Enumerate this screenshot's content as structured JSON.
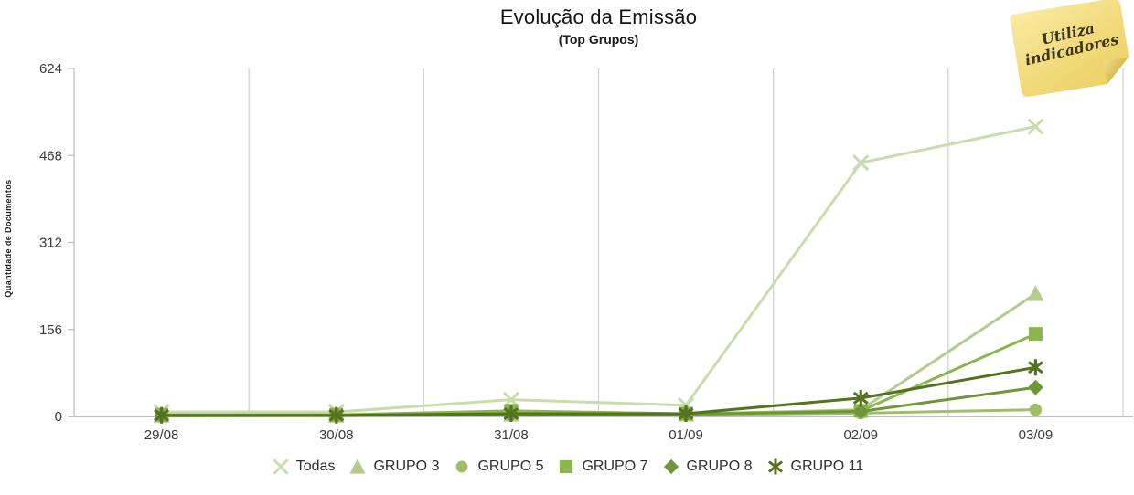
{
  "sticky_note": {
    "line1": "Utiliza",
    "line2": "indicadores"
  },
  "chart_data": {
    "type": "line",
    "title": "Evolução da Emissão",
    "subtitle": "(Top Grupos)",
    "ylabel": "Quantidade de Documentos",
    "xlabel": "",
    "categories": [
      "29/08",
      "30/08",
      "31/08",
      "01/09",
      "02/09",
      "03/09"
    ],
    "series": [
      {
        "name": "Todas",
        "marker": "x",
        "color": "#c9dcae",
        "values": [
          8,
          8,
          30,
          20,
          455,
          520
        ]
      },
      {
        "name": "GRUPO 3",
        "marker": "triangle",
        "color": "#b3cb8c",
        "values": [
          2,
          2,
          4,
          4,
          12,
          220
        ]
      },
      {
        "name": "GRUPO 5",
        "marker": "circle",
        "color": "#9fbe6b",
        "values": [
          1,
          1,
          3,
          3,
          6,
          12
        ]
      },
      {
        "name": "GRUPO 7",
        "marker": "square",
        "color": "#8ab74d",
        "values": [
          3,
          3,
          10,
          5,
          10,
          148
        ]
      },
      {
        "name": "GRUPO 8",
        "marker": "diamond",
        "color": "#6f973a",
        "values": [
          1,
          2,
          4,
          4,
          9,
          52
        ]
      },
      {
        "name": "GRUPO 11",
        "marker": "asterisk",
        "color": "#54731f",
        "values": [
          2,
          2,
          5,
          5,
          33,
          88
        ]
      }
    ],
    "yticks": [
      0,
      156,
      312,
      468,
      624
    ],
    "ylim": [
      0,
      624
    ],
    "grid": "vertical-only",
    "legend_position": "bottom",
    "axis_color": "#bfbfbf",
    "gridline_color": "#d2d2d2",
    "tick_label_color": "#3a3a3a"
  }
}
